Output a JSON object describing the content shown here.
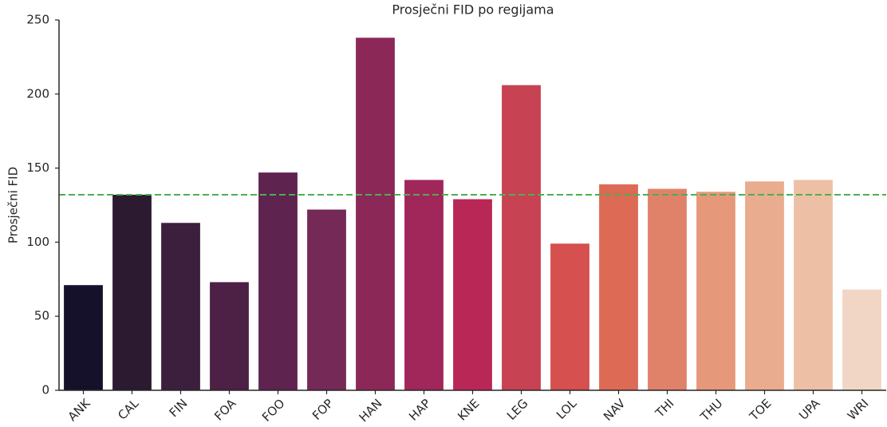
{
  "chart_data": {
    "type": "bar",
    "title": "Prosječni FID po regijama",
    "ylabel": "Prosječni FID",
    "categories": [
      "ANK",
      "CAL",
      "FIN",
      "FOA",
      "FOO",
      "FOP",
      "HAN",
      "HAP",
      "KNE",
      "LEG",
      "LOL",
      "NAV",
      "THI",
      "THU",
      "TOE",
      "UPA",
      "WRI"
    ],
    "values": [
      71,
      132,
      113,
      73,
      147,
      122,
      238,
      142,
      129,
      206,
      99,
      139,
      136,
      134,
      141,
      142,
      68
    ],
    "colors": [
      "#15112b",
      "#2b1a30",
      "#3b1f3c",
      "#4d2045",
      "#5e234f",
      "#752956",
      "#8c2858",
      "#a1265a",
      "#b92757",
      "#c74253",
      "#d5504e",
      "#dc6a55",
      "#e0826a",
      "#e5997a",
      "#e9ac8e",
      "#edc0a6",
      "#f1d6c5"
    ],
    "reference_line": {
      "value": 132,
      "color": "#4caf50",
      "style": "dashed"
    },
    "ylim": [
      0,
      250
    ],
    "yticks": [
      0,
      50,
      100,
      150,
      200,
      250
    ],
    "grid": false
  }
}
